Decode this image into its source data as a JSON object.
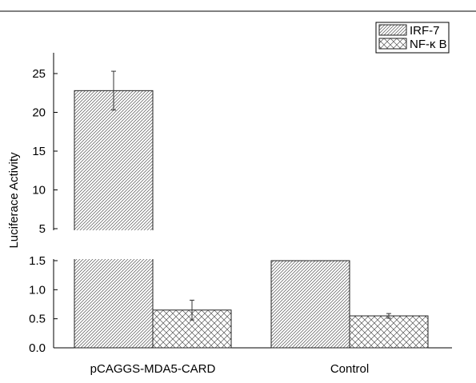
{
  "chart_data": {
    "type": "bar",
    "ylabel": "Luciferace Activity",
    "categories": [
      "pCAGGS-MDA5-CARD",
      "Control"
    ],
    "series": [
      {
        "name": "IRF-7",
        "pattern": "diagonal-hatch",
        "values": [
          22.8,
          1.62
        ],
        "errors": [
          2.5,
          0.07
        ]
      },
      {
        "name": "NF-κ B",
        "pattern": "cross-hatch",
        "values": [
          0.65,
          0.55
        ],
        "errors": [
          0.17,
          0.04
        ]
      }
    ],
    "y_axis": {
      "broken": true,
      "lower_segment": {
        "range": [
          0,
          1.5
        ],
        "ticks": [
          "0.0",
          "0.5",
          "1.0",
          "1.5"
        ]
      },
      "upper_segment": {
        "range": [
          5,
          25
        ],
        "ticks": [
          "5",
          "10",
          "15",
          "20",
          "25"
        ]
      }
    },
    "legend": {
      "placement": "top-right",
      "entries": [
        "IRF-7",
        "NF-κ B"
      ]
    },
    "grid": false,
    "colors": {
      "bar_fill": "#ffffff",
      "hatch": "#555555",
      "axis": "#000000"
    }
  }
}
